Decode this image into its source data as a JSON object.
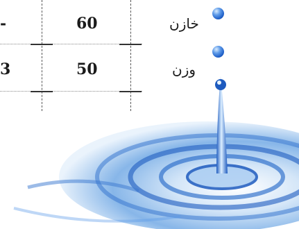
{
  "table": {
    "rows": [
      {
        "left_partial": "-",
        "value": "60"
      },
      {
        "left_partial": "3",
        "value": "50"
      }
    ]
  },
  "labels": {
    "first": "خازن",
    "second": "وزن"
  },
  "icons": {
    "bead": "water-bead-icon",
    "splash": "water-splash-image"
  },
  "colors": {
    "bead": "#1f5fc8",
    "water_light": "#cfe3f7",
    "water_dark": "#1e5bbf"
  }
}
